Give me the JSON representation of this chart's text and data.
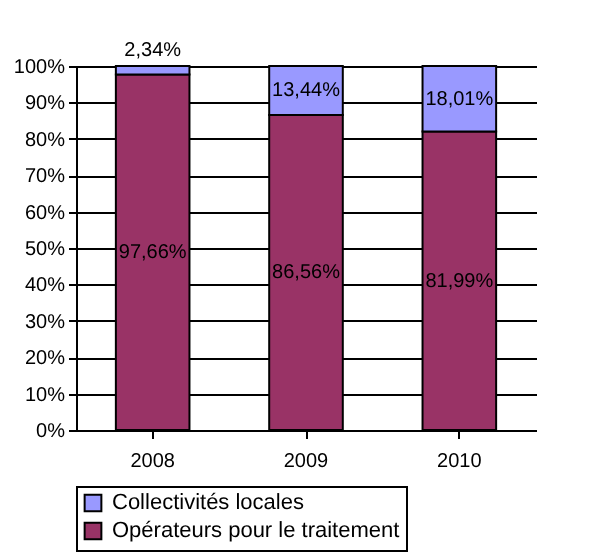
{
  "chart_data": {
    "type": "bar",
    "stacked": true,
    "categories": [
      "2008",
      "2009",
      "2010"
    ],
    "series": [
      {
        "name": "Opérateurs pour le traitement",
        "color": "#993366",
        "values": [
          97.66,
          86.56,
          81.99
        ],
        "value_labels": [
          "97,66%",
          "86,56%",
          "81,99%"
        ]
      },
      {
        "name": "Collectivités locales",
        "color": "#9999ff",
        "values": [
          2.34,
          13.44,
          18.01
        ],
        "value_labels": [
          "2,34%",
          "13,44%",
          "18,01%"
        ]
      }
    ],
    "ylim": [
      0,
      100
    ],
    "yticks": [
      {
        "value": 0,
        "label": "0%"
      },
      {
        "value": 10,
        "label": "10%"
      },
      {
        "value": 20,
        "label": "20%"
      },
      {
        "value": 30,
        "label": "30%"
      },
      {
        "value": 40,
        "label": "40%"
      },
      {
        "value": 50,
        "label": "50%"
      },
      {
        "value": 60,
        "label": "60%"
      },
      {
        "value": 70,
        "label": "70%"
      },
      {
        "value": 80,
        "label": "80%"
      },
      {
        "value": 90,
        "label": "90%"
      },
      {
        "value": 100,
        "label": "100%"
      }
    ],
    "grid": "y",
    "legend": "bottom"
  }
}
